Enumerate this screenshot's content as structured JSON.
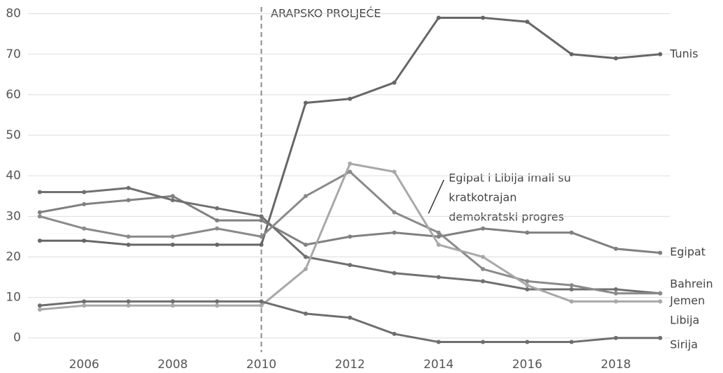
{
  "chart_data": {
    "type": "line",
    "annotations": [
      {
        "text": "ARAPSKO PROLJEĆE",
        "x": 2010
      },
      {
        "lines": [
          "Egipat i Libija imali su",
          "kratkotrajan",
          "demokratski progres"
        ]
      }
    ],
    "x": [
      2005,
      2006,
      2007,
      2008,
      2009,
      2010,
      2011,
      2012,
      2013,
      2014,
      2015,
      2016,
      2017,
      2018,
      2019
    ],
    "xlim": [
      2005,
      2019
    ],
    "xticks": [
      2006,
      2008,
      2010,
      2012,
      2014,
      2016,
      2018
    ],
    "ylim": [
      -4,
      82
    ],
    "yticks": [
      0,
      10,
      20,
      30,
      40,
      50,
      60,
      70,
      80
    ],
    "grid": true,
    "series": [
      {
        "name": "Tunis",
        "color": "#666666",
        "values": [
          24,
          24,
          23,
          23,
          23,
          23,
          58,
          59,
          63,
          79,
          79,
          78,
          70,
          69,
          70
        ]
      },
      {
        "name": "Egipat",
        "color": "#808080",
        "values": [
          31,
          33,
          34,
          35,
          29,
          29,
          23,
          25,
          26,
          25,
          27,
          26,
          26,
          22,
          21
        ]
      },
      {
        "name": "Bahrein",
        "color": "#707070",
        "values": [
          36,
          36,
          37,
          34,
          32,
          30,
          20,
          18,
          16,
          15,
          14,
          12,
          12,
          12,
          11
        ]
      },
      {
        "name": "Jemen",
        "color": "#8a8a8a",
        "values": [
          30,
          27,
          25,
          25,
          27,
          25,
          35,
          41,
          31,
          26,
          17,
          14,
          13,
          11,
          11
        ]
      },
      {
        "name": "Libija",
        "color": "#a8a8a8",
        "values": [
          7,
          8,
          8,
          8,
          8,
          8,
          17,
          43,
          41,
          23,
          20,
          13,
          9,
          9,
          9
        ]
      },
      {
        "name": "Sirija",
        "color": "#6e6e6e",
        "values": [
          8,
          9,
          9,
          9,
          9,
          9,
          6,
          5,
          1,
          -1,
          -1,
          -1,
          -1,
          0,
          0
        ]
      }
    ]
  }
}
